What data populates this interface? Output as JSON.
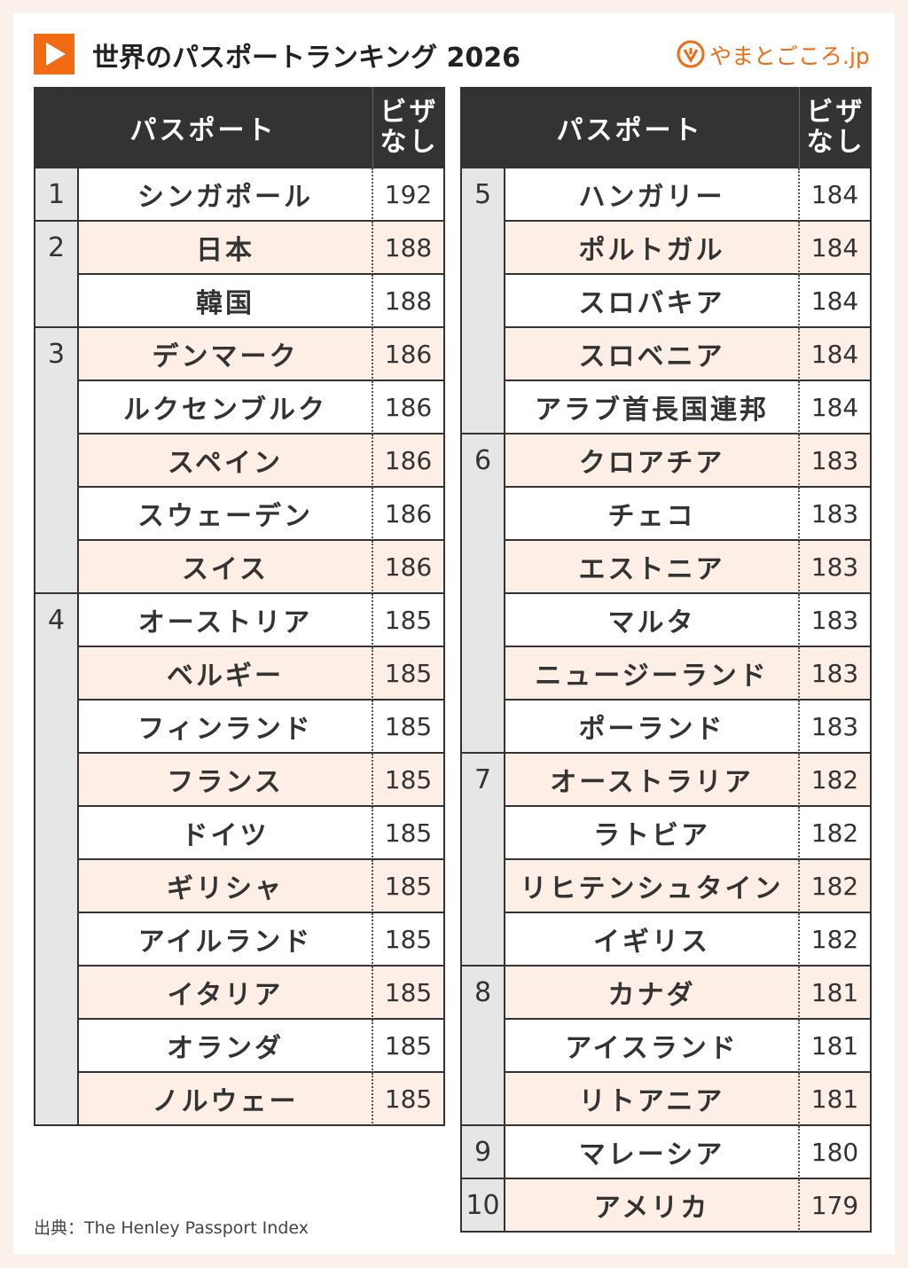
{
  "header": {
    "title": "世界のパスポートランキング 2026",
    "logo": "やまとごころ.jp"
  },
  "columns": {
    "passport": "パスポート",
    "visa_free": [
      "ビザ",
      "なし"
    ]
  },
  "tables": [
    {
      "groups": [
        {
          "rank": 1,
          "rows": [
            {
              "name": "シンガポール",
              "visa": 192
            }
          ]
        },
        {
          "rank": 2,
          "rows": [
            {
              "name": "日本",
              "visa": 188
            },
            {
              "name": "韓国",
              "visa": 188
            }
          ]
        },
        {
          "rank": 3,
          "rows": [
            {
              "name": "デンマーク",
              "visa": 186
            },
            {
              "name": "ルクセンブルク",
              "visa": 186
            },
            {
              "name": "スペイン",
              "visa": 186
            },
            {
              "name": "スウェーデン",
              "visa": 186
            },
            {
              "name": "スイス",
              "visa": 186
            }
          ]
        },
        {
          "rank": 4,
          "rows": [
            {
              "name": "オーストリア",
              "visa": 185
            },
            {
              "name": "ベルギー",
              "visa": 185
            },
            {
              "name": "フィンランド",
              "visa": 185
            },
            {
              "name": "フランス",
              "visa": 185
            },
            {
              "name": "ドイツ",
              "visa": 185
            },
            {
              "name": "ギリシャ",
              "visa": 185
            },
            {
              "name": "アイルランド",
              "visa": 185
            },
            {
              "name": "イタリア",
              "visa": 185
            },
            {
              "name": "オランダ",
              "visa": 185
            },
            {
              "name": "ノルウェー",
              "visa": 185
            }
          ]
        }
      ]
    },
    {
      "groups": [
        {
          "rank": 5,
          "rows": [
            {
              "name": "ハンガリー",
              "visa": 184
            },
            {
              "name": "ポルトガル",
              "visa": 184
            },
            {
              "name": "スロバキア",
              "visa": 184
            },
            {
              "name": "スロベニア",
              "visa": 184
            },
            {
              "name": "アラブ首長国連邦",
              "visa": 184
            }
          ]
        },
        {
          "rank": 6,
          "rows": [
            {
              "name": "クロアチア",
              "visa": 183
            },
            {
              "name": "チェコ",
              "visa": 183
            },
            {
              "name": "エストニア",
              "visa": 183
            },
            {
              "name": "マルタ",
              "visa": 183
            },
            {
              "name": "ニュージーランド",
              "visa": 183
            },
            {
              "name": "ポーランド",
              "visa": 183
            }
          ]
        },
        {
          "rank": 7,
          "rows": [
            {
              "name": "オーストラリア",
              "visa": 182
            },
            {
              "name": "ラトビア",
              "visa": 182
            },
            {
              "name": "リヒテンシュタイン",
              "visa": 182
            },
            {
              "name": "イギリス",
              "visa": 182
            }
          ]
        },
        {
          "rank": 8,
          "rows": [
            {
              "name": "カナダ",
              "visa": 181
            },
            {
              "name": "アイスランド",
              "visa": 181
            },
            {
              "name": "リトアニア",
              "visa": 181
            }
          ]
        },
        {
          "rank": 9,
          "rows": [
            {
              "name": "マレーシア",
              "visa": 180
            }
          ]
        },
        {
          "rank": 10,
          "rows": [
            {
              "name": "アメリカ",
              "visa": 179
            }
          ]
        }
      ]
    }
  ],
  "source": "出典：The Henley Passport Index"
}
